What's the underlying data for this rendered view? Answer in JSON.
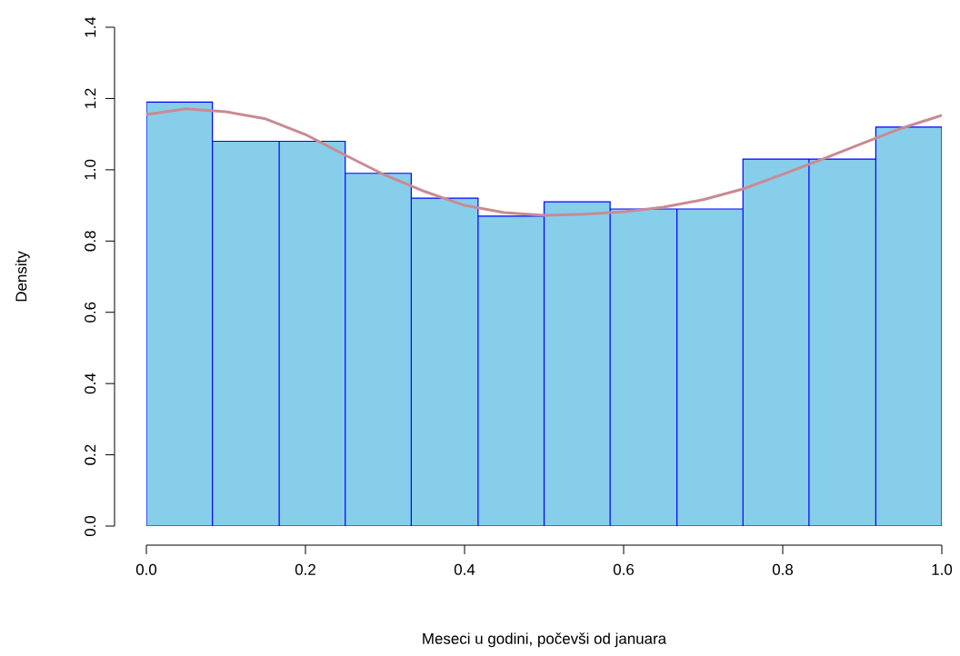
{
  "chart_data": {
    "type": "histogram",
    "xlabel": "Meseci u godini, počevši od januara",
    "ylabel": "Density",
    "bins": [
      0,
      0.083,
      0.167,
      0.25,
      0.333,
      0.417,
      0.5,
      0.583,
      0.667,
      0.75,
      0.833,
      0.917,
      1
    ],
    "values": [
      1.19,
      1.08,
      1.08,
      0.99,
      0.92,
      0.87,
      0.91,
      0.89,
      0.89,
      1.03,
      1.03,
      1.12
    ],
    "color": "#87ceeb",
    "series": [
      {
        "type": "line",
        "color": "#c98a94",
        "x": [
          0,
          0.05,
          0.1,
          0.15,
          0.2,
          0.25,
          0.3,
          0.35,
          0.4,
          0.45,
          0.5,
          0.55,
          0.6,
          0.65,
          0.7,
          0.75,
          0.8,
          0.85,
          0.9,
          0.95,
          1.0
        ],
        "values": [
          1.155,
          1.171,
          1.163,
          1.143,
          1.099,
          1.041,
          0.985,
          0.939,
          0.9,
          0.88,
          0.872,
          0.875,
          0.882,
          0.895,
          0.916,
          0.946,
          0.987,
          1.03,
          1.074,
          1.117,
          1.153
        ]
      }
    ],
    "xlim": [
      0,
      1
    ],
    "ylim": [
      0,
      1.4
    ],
    "xticks": [
      {
        "value": 0,
        "label": "0.0"
      },
      0.2,
      0.4,
      0.6,
      0.8,
      {
        "value": 1,
        "label": "1.0"
      }
    ],
    "yticks": [
      {
        "value": 0,
        "label": "0.0"
      },
      0.2,
      0.4,
      0.6,
      0.8,
      {
        "value": 1,
        "label": "1.0"
      },
      1.2,
      1.4
    ],
    "grid": false
  }
}
